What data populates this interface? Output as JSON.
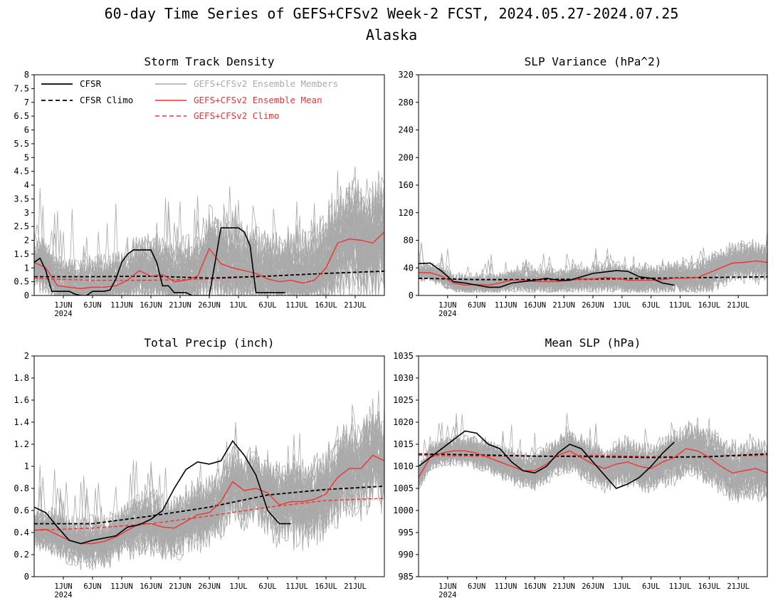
{
  "title": {
    "line1": "60-day Time Series of GEFS+CFSv2 Week-2 FCST, 2024.05.27-2024.07.25",
    "line2": "Alaska"
  },
  "colors": {
    "cfsr": "#000000",
    "members": "#aaaaaa",
    "ens_mean": "#ee3333",
    "ens_climo": "#ee3333",
    "cfsr_climo": "#000000"
  },
  "legend": [
    {
      "label": "CFSR",
      "color": "#000000",
      "dash": false,
      "text_color": "#000000"
    },
    {
      "label": "CFSR Climo",
      "color": "#000000",
      "dash": true,
      "text_color": "#000000"
    },
    {
      "label": "GEFS+CFSv2 Ensemble Members",
      "color": "#aaaaaa",
      "dash": false,
      "text_color": "#aaaaaa"
    },
    {
      "label": "GEFS+CFSv2 Ensemble Mean",
      "color": "#ee3333",
      "dash": false,
      "text_color": "#ee3333"
    },
    {
      "label": "GEFS+CFSv2 Climo",
      "color": "#ee3333",
      "dash": true,
      "text_color": "#ee3333"
    }
  ],
  "chart_data": [
    {
      "type": "line",
      "title": "Storm Track Density",
      "ylim": [
        0,
        8
      ],
      "yticks": [
        "0",
        "0.5",
        "1",
        "1.5",
        "2",
        "2.5",
        "3",
        "3.5",
        "4",
        "4.5",
        "5",
        "5.5",
        "6",
        "6.5",
        "7",
        "7.5",
        "8"
      ],
      "yvals": [
        0,
        0.5,
        1,
        1.5,
        2,
        2.5,
        3,
        3.5,
        4,
        4.5,
        5,
        5.5,
        6,
        6.5,
        7,
        7.5,
        8
      ],
      "xlim": [
        0,
        60
      ],
      "xtick_days": [
        5,
        10,
        15,
        20,
        25,
        30,
        35,
        40,
        45,
        50,
        55
      ],
      "xticks": [
        "1JUN",
        "6JUN",
        "11JUN",
        "16JUN",
        "21JUN",
        "26JUN",
        "1JUL",
        "6JUL",
        "11JUL",
        "16JUL",
        "21JUL"
      ],
      "year_label": "2024",
      "members": {
        "base": 1.0,
        "spread": 1.2,
        "max": 6.0,
        "min": 0
      },
      "series": [
        {
          "name": "CFSR",
          "x": [
            0,
            1,
            2,
            3,
            4,
            5,
            6,
            7,
            8,
            9,
            10,
            11,
            12,
            13,
            14,
            15,
            16,
            17,
            18,
            19,
            20,
            21,
            22,
            23,
            24,
            25,
            26,
            27,
            28,
            29,
            30,
            31,
            32,
            33,
            34,
            35,
            36,
            37,
            38,
            39,
            40,
            41,
            42,
            43
          ],
          "y": [
            1.2,
            1.35,
            0.9,
            0.15,
            0.15,
            0.15,
            0.15,
            0.05,
            0.0,
            0.0,
            0.15,
            0.15,
            0.15,
            0.2,
            0.6,
            1.2,
            1.5,
            1.65,
            1.65,
            1.65,
            1.65,
            1.2,
            0.35,
            0.35,
            0.1,
            0.1,
            0.1,
            0.0,
            0.0,
            0.0,
            0.0,
            1.2,
            2.45,
            2.45,
            2.45,
            2.45,
            2.3,
            1.8,
            0.1,
            0.1,
            0.1,
            0.1,
            0.1,
            0.1
          ]
        },
        {
          "name": "CFSR Climo",
          "x": [
            0,
            10,
            20,
            30,
            40,
            50,
            60
          ],
          "y": [
            0.68,
            0.68,
            0.7,
            0.63,
            0.7,
            0.8,
            0.88
          ]
        },
        {
          "name": "GEFS+CFSv2 Ensemble Mean",
          "x": [
            0,
            2,
            4,
            6,
            8,
            10,
            12,
            14,
            16,
            18,
            20,
            22,
            24,
            26,
            28,
            30,
            32,
            34,
            36,
            38,
            40,
            42,
            44,
            46,
            48,
            50,
            52,
            54,
            56,
            58,
            60
          ],
          "y": [
            1.2,
            1.0,
            0.35,
            0.3,
            0.25,
            0.3,
            0.3,
            0.35,
            0.55,
            0.9,
            0.7,
            0.75,
            0.5,
            0.55,
            0.7,
            1.7,
            1.15,
            1.0,
            0.9,
            0.8,
            0.6,
            0.5,
            0.55,
            0.45,
            0.55,
            1.0,
            1.9,
            2.05,
            2.0,
            1.9,
            2.3
          ]
        },
        {
          "name": "GEFS+CFSv2 Climo",
          "x": [
            0,
            10,
            20,
            30,
            40,
            50,
            60
          ],
          "y": [
            0.62,
            0.55,
            0.55,
            0.6,
            0.7,
            0.8,
            0.88
          ]
        }
      ]
    },
    {
      "type": "line",
      "title": "SLP Variance (hPa^2)",
      "ylim": [
        0,
        320
      ],
      "yticks": [
        "0",
        "40",
        "80",
        "120",
        "160",
        "200",
        "240",
        "280",
        "320"
      ],
      "yvals": [
        0,
        40,
        80,
        120,
        160,
        200,
        240,
        280,
        320
      ],
      "xlim": [
        0,
        60
      ],
      "xtick_days": [
        5,
        10,
        15,
        20,
        25,
        30,
        35,
        40,
        45,
        50,
        55
      ],
      "xticks": [
        "1JUN",
        "6JUN",
        "11JUN",
        "16JUN",
        "21JUN",
        "26JUN",
        "1JUL",
        "6JUL",
        "11JUL",
        "16JUL",
        "21JUL"
      ],
      "year_label": "2024",
      "members": {
        "base": 30,
        "spread": 18,
        "max": 125,
        "min": 5
      },
      "series": [
        {
          "name": "CFSR",
          "x": [
            0,
            2,
            4,
            6,
            8,
            10,
            12,
            14,
            16,
            18,
            20,
            22,
            24,
            26,
            28,
            30,
            32,
            34,
            36,
            38,
            40,
            42,
            44
          ],
          "y": [
            46,
            47,
            35,
            20,
            18,
            15,
            12,
            12,
            18,
            20,
            22,
            25,
            22,
            22,
            27,
            32,
            34,
            36,
            35,
            27,
            25,
            18,
            15
          ]
        },
        {
          "name": "CFSR Climo",
          "x": [
            0,
            10,
            20,
            30,
            40,
            50,
            60
          ],
          "y": [
            25,
            23,
            23,
            24,
            25,
            26,
            27
          ]
        },
        {
          "name": "GEFS+CFSv2 Ensemble Mean",
          "x": [
            0,
            2,
            4,
            6,
            8,
            10,
            12,
            14,
            16,
            18,
            20,
            22,
            24,
            26,
            28,
            30,
            32,
            34,
            36,
            38,
            40,
            42,
            44,
            46,
            48,
            50,
            52,
            54,
            56,
            58,
            60
          ],
          "y": [
            33,
            33,
            28,
            18,
            15,
            16,
            15,
            18,
            22,
            22,
            20,
            20,
            20,
            22,
            24,
            24,
            26,
            25,
            22,
            22,
            22,
            23,
            25,
            25,
            26,
            33,
            40,
            47,
            48,
            50,
            48
          ]
        },
        {
          "name": "GEFS+CFSv2 Climo",
          "x": [
            0,
            10,
            20,
            30,
            40,
            50,
            60
          ],
          "y": [
            25,
            23,
            22,
            23,
            24,
            26,
            27
          ]
        }
      ]
    },
    {
      "type": "line",
      "title": "Total Precip (inch)",
      "ylim": [
        0,
        2
      ],
      "yticks": [
        "0",
        "0.2",
        "0.4",
        "0.6",
        "0.8",
        "1",
        "1.2",
        "1.4",
        "1.6",
        "1.8",
        "2"
      ],
      "yvals": [
        0,
        0.2,
        0.4,
        0.6,
        0.8,
        1,
        1.2,
        1.4,
        1.6,
        1.8,
        2
      ],
      "xlim": [
        0,
        60
      ],
      "xtick_days": [
        5,
        10,
        15,
        20,
        25,
        30,
        35,
        40,
        45,
        50,
        55
      ],
      "xticks": [
        "1JUN",
        "6JUN",
        "11JUN",
        "16JUN",
        "21JUN",
        "26JUN",
        "1JUL",
        "6JUL",
        "11JUL",
        "16JUL",
        "21JUL"
      ],
      "year_label": "2024",
      "members": {
        "base": 0.45,
        "spread": 0.25,
        "max": 1.95,
        "min": 0.05
      },
      "series": [
        {
          "name": "CFSR",
          "x": [
            0,
            2,
            4,
            6,
            8,
            10,
            12,
            14,
            16,
            18,
            20,
            22,
            24,
            26,
            28,
            30,
            32,
            34,
            36,
            38,
            40,
            42,
            44
          ],
          "y": [
            0.63,
            0.58,
            0.45,
            0.33,
            0.3,
            0.33,
            0.35,
            0.37,
            0.45,
            0.47,
            0.52,
            0.6,
            0.8,
            0.97,
            1.04,
            1.02,
            1.05,
            1.23,
            1.1,
            0.92,
            0.6,
            0.48,
            0.48
          ]
        },
        {
          "name": "CFSR Climo",
          "x": [
            0,
            10,
            20,
            30,
            40,
            50,
            60
          ],
          "y": [
            0.48,
            0.48,
            0.55,
            0.63,
            0.74,
            0.79,
            0.82
          ]
        },
        {
          "name": "GEFS+CFSv2 Ensemble Mean",
          "x": [
            0,
            2,
            4,
            6,
            8,
            10,
            12,
            14,
            16,
            18,
            20,
            22,
            24,
            26,
            28,
            30,
            32,
            34,
            36,
            38,
            40,
            42,
            44,
            46,
            48,
            50,
            52,
            54,
            56,
            58,
            60
          ],
          "y": [
            0.42,
            0.43,
            0.38,
            0.33,
            0.3,
            0.3,
            0.32,
            0.36,
            0.42,
            0.48,
            0.48,
            0.45,
            0.44,
            0.5,
            0.56,
            0.58,
            0.68,
            0.86,
            0.78,
            0.8,
            0.76,
            0.65,
            0.68,
            0.68,
            0.7,
            0.75,
            0.9,
            0.98,
            0.98,
            1.1,
            1.05
          ]
        },
        {
          "name": "GEFS+CFSv2 Climo",
          "x": [
            0,
            10,
            20,
            30,
            40,
            50,
            60
          ],
          "y": [
            0.42,
            0.44,
            0.48,
            0.55,
            0.63,
            0.69,
            0.71
          ]
        }
      ]
    },
    {
      "type": "line",
      "title": "Mean SLP (hPa)",
      "ylim": [
        985,
        1035
      ],
      "yticks": [
        "985",
        "990",
        "995",
        "1000",
        "1005",
        "1010",
        "1015",
        "1020",
        "1025",
        "1030",
        "1035"
      ],
      "yvals": [
        985,
        990,
        995,
        1000,
        1005,
        1010,
        1015,
        1020,
        1025,
        1030,
        1035
      ],
      "xlim": [
        0,
        60
      ],
      "xtick_days": [
        5,
        10,
        15,
        20,
        25,
        30,
        35,
        40,
        45,
        50,
        55
      ],
      "xticks": [
        "1JUN",
        "6JUN",
        "11JUN",
        "16JUN",
        "21JUN",
        "26JUN",
        "1JUL",
        "6JUL",
        "11JUL",
        "16JUL",
        "21JUL"
      ],
      "year_label": "2024",
      "members": {
        "base": 1011,
        "spread": 3.8,
        "max": 1022,
        "min": 999
      },
      "series": [
        {
          "name": "CFSR",
          "x": [
            0,
            2,
            4,
            6,
            8,
            10,
            12,
            14,
            16,
            18,
            20,
            22,
            24,
            26,
            28,
            30,
            32,
            34,
            36,
            38,
            40,
            42,
            44
          ],
          "y": [
            1010,
            1012,
            1014,
            1016,
            1018,
            1017.5,
            1015,
            1014,
            1011,
            1009,
            1008.5,
            1010,
            1013,
            1015,
            1014,
            1011,
            1008,
            1005,
            1006,
            1007.5,
            1010,
            1013,
            1015.5
          ]
        },
        {
          "name": "CFSR Climo",
          "x": [
            0,
            10,
            20,
            30,
            40,
            50,
            60
          ],
          "y": [
            1012.8,
            1012.6,
            1012.3,
            1012.2,
            1012.0,
            1012.2,
            1012.8
          ]
        },
        {
          "name": "GEFS+CFSv2 Ensemble Mean",
          "x": [
            0,
            2,
            4,
            6,
            8,
            10,
            12,
            14,
            16,
            18,
            20,
            22,
            24,
            26,
            28,
            30,
            32,
            34,
            36,
            38,
            40,
            42,
            44,
            46,
            48,
            50,
            52,
            54,
            56,
            58,
            60
          ],
          "y": [
            1007.5,
            1012,
            1013,
            1013.5,
            1013.5,
            1013,
            1012,
            1011,
            1010,
            1009,
            1009,
            1010.5,
            1012.5,
            1013.5,
            1012,
            1010.5,
            1009.5,
            1010.5,
            1011,
            1010,
            1009.5,
            1011,
            1012,
            1014,
            1013.5,
            1012,
            1010,
            1008.5,
            1009,
            1009.5,
            1008.5
          ]
        },
        {
          "name": "GEFS+CFSv2 Climo",
          "x": [
            0,
            10,
            20,
            30,
            40,
            50,
            60
          ],
          "y": [
            1012.5,
            1012.3,
            1012.3,
            1012.5,
            1012.2,
            1012.2,
            1012.5
          ]
        }
      ]
    }
  ]
}
